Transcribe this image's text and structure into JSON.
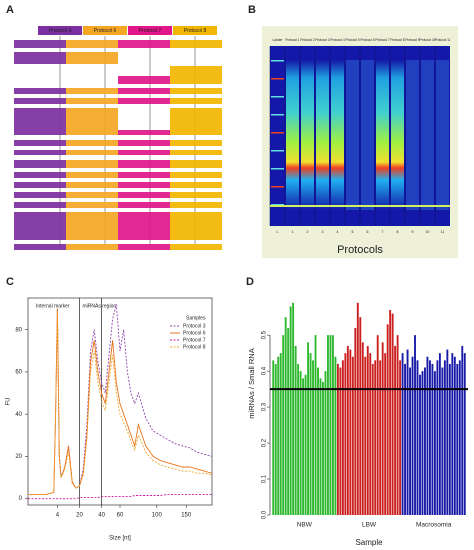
{
  "panels": [
    "A",
    "B",
    "C",
    "D"
  ],
  "flowchart": {
    "protocols": [
      "Protocol 3",
      "Protocol 6",
      "Protocol 7",
      "Protocol 8"
    ]
  },
  "gel": {
    "lanes_top": [
      "Ladder",
      "Protocol 1",
      "Protocol 2",
      "Protocol 3",
      "Protocol 4",
      "Protocol 5",
      "Protocol 6",
      "Protocol 7",
      "Protocol 8",
      "Protocol 9",
      "Protocol 10",
      "Protocol 11"
    ],
    "lanes_bottom": [
      "L",
      "1",
      "2",
      "3",
      "4",
      "5",
      "6",
      "7",
      "8",
      "9",
      "10",
      "11"
    ],
    "caption": "Protocols"
  },
  "chart_data": [
    {
      "type": "line",
      "x_label": "Size [nt]",
      "y_label": "FU",
      "annotations": [
        "Internal marker",
        "miRNAs region"
      ],
      "legend_title": "Samples",
      "x": [
        0,
        5,
        10,
        14,
        15,
        16,
        17,
        18,
        20,
        22,
        24,
        26,
        28,
        30,
        32,
        34,
        36,
        38,
        40,
        42,
        44,
        46,
        48,
        50,
        52,
        54,
        56,
        58,
        60,
        64,
        68,
        72,
        76,
        80,
        84,
        88,
        92,
        96,
        100
      ],
      "series": [
        {
          "name": "Protocol 3",
          "color": "#8e44ad",
          "dash": true,
          "values": [
            2,
            2,
            2,
            3,
            40,
            90,
            20,
            10,
            15,
            25,
            8,
            5,
            6,
            14,
            35,
            70,
            80,
            65,
            55,
            50,
            68,
            85,
            92,
            70,
            80,
            60,
            50,
            45,
            50,
            38,
            32,
            30,
            28,
            26,
            25,
            24,
            22,
            21,
            20
          ]
        },
        {
          "name": "Protocol 6",
          "color": "#e8741c",
          "dash": false,
          "values": [
            2,
            2,
            2,
            3,
            40,
            90,
            20,
            10,
            15,
            25,
            8,
            5,
            6,
            12,
            30,
            65,
            75,
            60,
            50,
            45,
            60,
            75,
            55,
            45,
            40,
            35,
            30,
            25,
            35,
            25,
            20,
            18,
            17,
            16,
            15,
            15,
            14,
            13,
            12
          ]
        },
        {
          "name": "Protocol 7",
          "color": "#d1179a",
          "dash": true,
          "values": [
            0,
            0,
            0,
            0,
            0,
            0,
            0,
            0,
            0,
            0,
            0,
            0,
            0.5,
            0.5,
            0.5,
            0.5,
            0.5,
            0.5,
            1,
            1,
            1,
            1,
            1,
            1,
            1,
            1,
            1,
            1.5,
            1.5,
            1.5,
            1.5,
            1.5,
            2,
            2,
            2,
            2,
            2,
            2,
            2
          ]
        },
        {
          "name": "Protocol 8",
          "color": "#f0a830",
          "dash": true,
          "values": [
            2,
            2,
            2,
            3,
            40,
            88,
            20,
            10,
            14,
            22,
            7,
            5,
            6,
            11,
            28,
            60,
            70,
            55,
            46,
            42,
            55,
            68,
            50,
            40,
            36,
            32,
            27,
            23,
            30,
            22,
            18,
            16,
            15,
            14,
            13,
            13,
            12,
            12,
            11
          ]
        }
      ],
      "xlim": [
        0,
        100
      ],
      "ylim": [
        -3,
        95
      ],
      "xticks": [
        {
          "value": 16,
          "label": "4"
        },
        {
          "value": 28,
          "label": "20"
        },
        {
          "value": 40,
          "label": "40"
        },
        {
          "value": 50,
          "label": "60"
        },
        {
          "value": 70,
          "label": "100"
        },
        {
          "value": 86,
          "label": "150"
        }
      ],
      "yticks": [
        0,
        20,
        40,
        60,
        80
      ],
      "vlines": [
        28,
        40
      ]
    },
    {
      "type": "bar",
      "x_label": "Sample",
      "y_label": "miRNAs / Small RNA",
      "series": [
        {
          "name": "NBW",
          "color": "#2eb82e",
          "values": [
            0.43,
            0.42,
            0.44,
            0.45,
            0.5,
            0.55,
            0.52,
            0.58,
            0.59,
            0.47,
            0.42,
            0.4,
            0.38,
            0.39,
            0.48,
            0.45,
            0.43,
            0.5,
            0.41,
            0.38,
            0.37,
            0.4,
            0.5,
            0.5,
            0.5,
            0.44
          ]
        },
        {
          "name": "LBW",
          "color": "#cc1f1f",
          "values": [
            0.42,
            0.41,
            0.43,
            0.45,
            0.47,
            0.46,
            0.44,
            0.52,
            0.59,
            0.55,
            0.48,
            0.44,
            0.47,
            0.45,
            0.42,
            0.43,
            0.5,
            0.43,
            0.48,
            0.45,
            0.53,
            0.57,
            0.56,
            0.47,
            0.5,
            0.43
          ]
        },
        {
          "name": "Macrosomia",
          "color": "#1a1aa8",
          "values": [
            0.45,
            0.42,
            0.46,
            0.41,
            0.44,
            0.5,
            0.43,
            0.39,
            0.4,
            0.41,
            0.44,
            0.43,
            0.42,
            0.4,
            0.43,
            0.45,
            0.41,
            0.43,
            0.46,
            0.42,
            0.45,
            0.44,
            0.42,
            0.43,
            0.47,
            0.45
          ]
        }
      ],
      "ylim": [
        0,
        0.62
      ],
      "yticks": [
        {
          "value": 0,
          "label": "0.0"
        },
        0.1,
        0.2,
        0.3,
        0.4,
        0.5
      ],
      "hline": 0.35
    }
  ]
}
